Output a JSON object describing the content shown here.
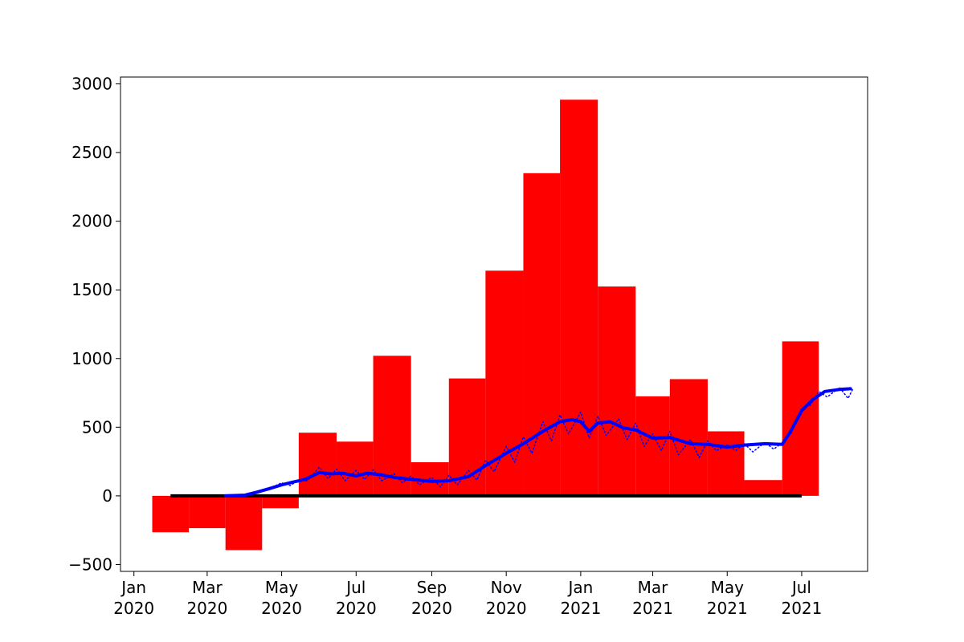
{
  "chart_data": {
    "type": "bar",
    "title": "",
    "xlabel": "",
    "ylabel": "",
    "ylim": [
      -550,
      3050
    ],
    "xlim": [
      "2019-12-21",
      "2021-08-24"
    ],
    "grid": false,
    "legend": "none",
    "colors": {
      "bars": "#ff0000",
      "line": "#0000ff",
      "baseline": "#000000",
      "axes": "#000000"
    },
    "y_ticks": [
      3000,
      2500,
      2000,
      1500,
      1000,
      500,
      0,
      -500
    ],
    "y_tick_labels": [
      "3000",
      "2500",
      "2000",
      "1500",
      "1000",
      "500",
      "0",
      "−500"
    ],
    "x_ticks": [
      {
        "date": "2020-01-01",
        "month": "Jan",
        "year": "2020"
      },
      {
        "date": "2020-03-01",
        "month": "Mar",
        "year": "2020"
      },
      {
        "date": "2020-05-01",
        "month": "May",
        "year": "2020"
      },
      {
        "date": "2020-07-01",
        "month": "Jul",
        "year": "2020"
      },
      {
        "date": "2020-09-01",
        "month": "Sep",
        "year": "2020"
      },
      {
        "date": "2020-11-01",
        "month": "Nov",
        "year": "2020"
      },
      {
        "date": "2021-01-01",
        "month": "Jan",
        "year": "2021"
      },
      {
        "date": "2021-03-01",
        "month": "Mar",
        "year": "2021"
      },
      {
        "date": "2021-05-01",
        "month": "May",
        "year": "2021"
      },
      {
        "date": "2021-07-01",
        "month": "Jul",
        "year": "2021"
      }
    ],
    "bars": [
      {
        "start": "2020-01-16",
        "end": "2020-02-15",
        "value": -265
      },
      {
        "start": "2020-02-15",
        "end": "2020-03-16",
        "value": -235
      },
      {
        "start": "2020-03-16",
        "end": "2020-04-15",
        "value": -395
      },
      {
        "start": "2020-04-15",
        "end": "2020-05-15",
        "value": -90
      },
      {
        "start": "2020-05-15",
        "end": "2020-06-15",
        "value": 460
      },
      {
        "start": "2020-06-15",
        "end": "2020-07-15",
        "value": 395
      },
      {
        "start": "2020-07-15",
        "end": "2020-08-15",
        "value": 1020
      },
      {
        "start": "2020-08-15",
        "end": "2020-09-15",
        "value": 245
      },
      {
        "start": "2020-09-15",
        "end": "2020-10-15",
        "value": 855
      },
      {
        "start": "2020-10-15",
        "end": "2020-11-15",
        "value": 1640
      },
      {
        "start": "2020-11-15",
        "end": "2020-12-15",
        "value": 2350
      },
      {
        "start": "2020-12-15",
        "end": "2021-01-15",
        "value": 2885
      },
      {
        "start": "2021-01-15",
        "end": "2021-02-15",
        "value": 1525
      },
      {
        "start": "2021-02-15",
        "end": "2021-03-15",
        "value": 725
      },
      {
        "start": "2021-03-15",
        "end": "2021-04-15",
        "value": 850
      },
      {
        "start": "2021-04-15",
        "end": "2021-05-15",
        "value": 470
      },
      {
        "start": "2021-05-15",
        "end": "2021-06-15",
        "value": 115
      },
      {
        "start": "2021-06-15",
        "end": "2021-07-15",
        "value": 1125
      }
    ],
    "baseline": {
      "start": "2020-01-31",
      "end": "2021-07-01",
      "value": 0
    },
    "series": [
      {
        "style": "solid",
        "points": [
          [
            "2020-03-16",
            0
          ],
          [
            "2020-04-01",
            5
          ],
          [
            "2020-04-10",
            25
          ],
          [
            "2020-04-20",
            50
          ],
          [
            "2020-05-01",
            80
          ],
          [
            "2020-05-10",
            100
          ],
          [
            "2020-05-20",
            120
          ],
          [
            "2020-06-01",
            170
          ],
          [
            "2020-06-10",
            160
          ],
          [
            "2020-06-20",
            165
          ],
          [
            "2020-07-01",
            145
          ],
          [
            "2020-07-10",
            165
          ],
          [
            "2020-07-20",
            155
          ],
          [
            "2020-08-01",
            135
          ],
          [
            "2020-08-15",
            120
          ],
          [
            "2020-09-01",
            105
          ],
          [
            "2020-09-15",
            110
          ],
          [
            "2020-10-01",
            140
          ],
          [
            "2020-10-15",
            220
          ],
          [
            "2020-11-01",
            310
          ],
          [
            "2020-11-15",
            380
          ],
          [
            "2020-12-01",
            470
          ],
          [
            "2020-12-15",
            540
          ],
          [
            "2020-12-25",
            555
          ],
          [
            "2021-01-01",
            540
          ],
          [
            "2021-01-08",
            470
          ],
          [
            "2021-01-15",
            530
          ],
          [
            "2021-01-25",
            540
          ],
          [
            "2021-02-05",
            495
          ],
          [
            "2021-02-15",
            480
          ],
          [
            "2021-03-01",
            420
          ],
          [
            "2021-03-15",
            425
          ],
          [
            "2021-04-01",
            380
          ],
          [
            "2021-04-15",
            375
          ],
          [
            "2021-05-01",
            355
          ],
          [
            "2021-05-15",
            370
          ],
          [
            "2021-06-01",
            380
          ],
          [
            "2021-06-15",
            375
          ],
          [
            "2021-06-22",
            470
          ],
          [
            "2021-07-01",
            620
          ],
          [
            "2021-07-10",
            700
          ],
          [
            "2021-07-20",
            760
          ],
          [
            "2021-08-01",
            775
          ],
          [
            "2021-08-10",
            780
          ]
        ]
      },
      {
        "style": "dotted",
        "points": [
          [
            "2020-04-15",
            45
          ],
          [
            "2020-04-25",
            70
          ],
          [
            "2020-05-01",
            95
          ],
          [
            "2020-05-08",
            75
          ],
          [
            "2020-05-15",
            115
          ],
          [
            "2020-05-22",
            110
          ],
          [
            "2020-06-01",
            210
          ],
          [
            "2020-06-08",
            125
          ],
          [
            "2020-06-15",
            195
          ],
          [
            "2020-06-22",
            110
          ],
          [
            "2020-07-01",
            185
          ],
          [
            "2020-07-08",
            120
          ],
          [
            "2020-07-15",
            190
          ],
          [
            "2020-07-22",
            110
          ],
          [
            "2020-08-01",
            160
          ],
          [
            "2020-08-08",
            95
          ],
          [
            "2020-08-15",
            145
          ],
          [
            "2020-08-22",
            80
          ],
          [
            "2020-09-01",
            135
          ],
          [
            "2020-09-08",
            65
          ],
          [
            "2020-09-15",
            150
          ],
          [
            "2020-09-22",
            80
          ],
          [
            "2020-10-01",
            185
          ],
          [
            "2020-10-08",
            115
          ],
          [
            "2020-10-15",
            260
          ],
          [
            "2020-10-22",
            175
          ],
          [
            "2020-11-01",
            360
          ],
          [
            "2020-11-08",
            245
          ],
          [
            "2020-11-15",
            430
          ],
          [
            "2020-11-22",
            310
          ],
          [
            "2020-12-01",
            540
          ],
          [
            "2020-12-08",
            400
          ],
          [
            "2020-12-15",
            590
          ],
          [
            "2020-12-22",
            450
          ],
          [
            "2021-01-01",
            610
          ],
          [
            "2021-01-08",
            420
          ],
          [
            "2021-01-15",
            580
          ],
          [
            "2021-01-22",
            440
          ],
          [
            "2021-02-01",
            560
          ],
          [
            "2021-02-08",
            410
          ],
          [
            "2021-02-15",
            530
          ],
          [
            "2021-02-22",
            360
          ],
          [
            "2021-03-01",
            450
          ],
          [
            "2021-03-08",
            330
          ],
          [
            "2021-03-15",
            470
          ],
          [
            "2021-03-22",
            300
          ],
          [
            "2021-04-01",
            410
          ],
          [
            "2021-04-08",
            280
          ],
          [
            "2021-04-15",
            400
          ],
          [
            "2021-04-22",
            330
          ],
          [
            "2021-05-01",
            370
          ],
          [
            "2021-05-08",
            330
          ],
          [
            "2021-05-15",
            380
          ],
          [
            "2021-05-22",
            320
          ],
          [
            "2021-06-01",
            390
          ],
          [
            "2021-06-08",
            340
          ],
          [
            "2021-06-15",
            385
          ],
          [
            "2021-06-22",
            450
          ],
          [
            "2021-07-01",
            640
          ],
          [
            "2021-07-08",
            660
          ],
          [
            "2021-07-15",
            760
          ],
          [
            "2021-07-22",
            720
          ],
          [
            "2021-08-01",
            790
          ],
          [
            "2021-08-08",
            710
          ],
          [
            "2021-08-12",
            780
          ]
        ]
      }
    ]
  }
}
